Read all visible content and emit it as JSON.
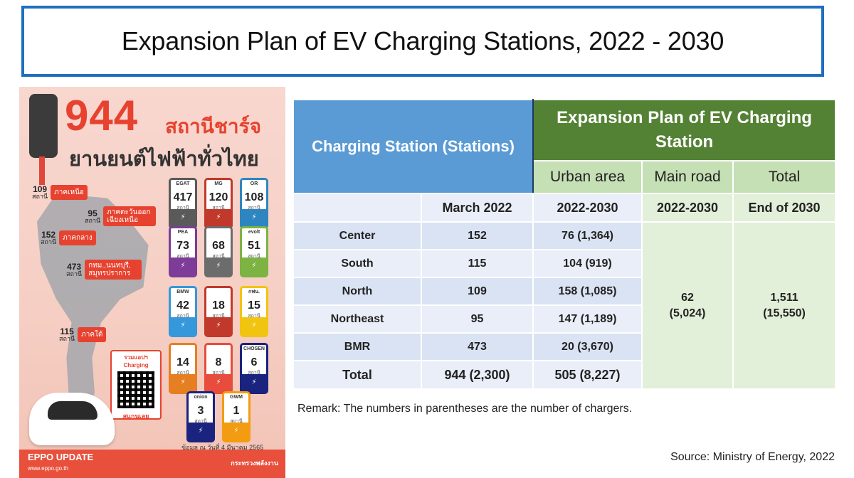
{
  "title": "Expansion Plan of EV Charging Stations, 2022 - 2030",
  "infographic": {
    "big_number": "944",
    "thai_line1": "สถานีชาร์จ",
    "thai_line2": "ยานยนต์ไฟฟ้าทั่วไทย",
    "regions": [
      {
        "count": "109",
        "unit": "สถานี",
        "label": "ภาคเหนือ"
      },
      {
        "count": "95",
        "unit": "สถานี",
        "label": "ภาคตะวันออกเฉียงเหนือ"
      },
      {
        "count": "152",
        "unit": "สถานี",
        "label": "ภาคกลาง"
      },
      {
        "count": "473",
        "unit": "สถานี",
        "label": "กทม.,นนทบุรี, สมุทรปราการ"
      },
      {
        "count": "115",
        "unit": "สถานี",
        "label": "ภาคใต้"
      }
    ],
    "stations": [
      {
        "logo": "EGAT",
        "count": "417",
        "unit": "สถานี",
        "color": "#5a5a5a"
      },
      {
        "logo": "MG",
        "count": "120",
        "unit": "สถานี",
        "color": "#c0392b"
      },
      {
        "logo": "OR",
        "count": "108",
        "unit": "สถานี",
        "color": "#2e86c1"
      },
      {
        "logo": "PEA",
        "count": "73",
        "unit": "สถานี",
        "color": "#7d3c98"
      },
      {
        "logo": "",
        "count": "68",
        "unit": "สถานี",
        "color": "#6c6c6c"
      },
      {
        "logo": "evolt",
        "count": "51",
        "unit": "สถานี",
        "color": "#7cb342"
      },
      {
        "logo": "BMW",
        "count": "42",
        "unit": "สถานี",
        "color": "#3498db"
      },
      {
        "logo": "",
        "count": "18",
        "unit": "สถานี",
        "color": "#c0392b"
      },
      {
        "logo": "กฟน.",
        "count": "15",
        "unit": "สถานี",
        "color": "#f1c40f"
      },
      {
        "logo": "",
        "count": "14",
        "unit": "สถานี",
        "color": "#e67e22"
      },
      {
        "logo": "",
        "count": "8",
        "unit": "สถานี",
        "color": "#e74c3c"
      },
      {
        "logo": "CHOSEN",
        "count": "6",
        "unit": "สถานี",
        "color": "#1a237e"
      },
      {
        "logo": "onion",
        "count": "3",
        "unit": "สถานี",
        "color": "#1a237e"
      },
      {
        "logo": "GWM",
        "count": "1",
        "unit": "สถานี",
        "color": "#f39c12"
      }
    ],
    "qr_caption": "รวมแอปฯ Charging",
    "qr_scan": "สแกนเลย",
    "date_note": "ข้อมูล ณ วันที่ 4 มีนาคม 2565",
    "footer_title": "EPPO UPDATE",
    "footer_site": "www.eppo.go.th",
    "footer_ministry": "กระทรวงพลังงาน"
  },
  "table": {
    "header_station": "Charging Station (Stations)",
    "header_plan": "Expansion Plan of EV Charging Station",
    "sub_urban": "Urban area",
    "sub_main_road": "Main road",
    "sub_total": "Total",
    "col_march": "March 2022",
    "col_urban": "2022-2030",
    "col_main_road": "2022-2030",
    "col_total": "End of 2030",
    "rows": [
      {
        "region": "Center",
        "march": "152",
        "urban": "76 (1,364)"
      },
      {
        "region": "South",
        "march": "115",
        "urban": "104 (919)"
      },
      {
        "region": "North",
        "march": "109",
        "urban": "158 (1,085)"
      },
      {
        "region": "Northeast",
        "march": "95",
        "urban": "147 (1,189)"
      },
      {
        "region": "BMR",
        "march": "473",
        "urban": "20 (3,670)"
      }
    ],
    "main_road_value": "62",
    "main_road_chargers": "(5,024)",
    "total_value": "1,511",
    "total_chargers": "(15,550)",
    "total_row": {
      "label": "Total",
      "march": "944 (2,300)",
      "urban": "505 (8,227)"
    }
  },
  "remark": "Remark: The numbers in parentheses are the number of chargers.",
  "source": "Source: Ministry of Energy, 2022"
}
